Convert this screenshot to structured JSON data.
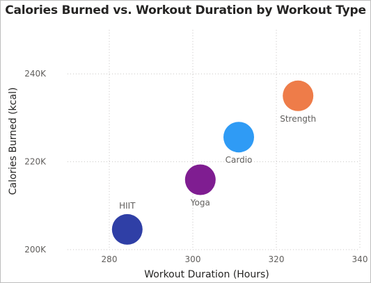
{
  "chart_data": {
    "type": "scatter",
    "title": "Calories Burned vs. Workout Duration by Workout Type",
    "xlabel": "Workout Duration (Hours)",
    "ylabel": "Calories Burned (kcal)",
    "xlim": [
      270,
      340
    ],
    "ylim": [
      200000,
      250000
    ],
    "xticks": [
      {
        "value": 280,
        "label": "280"
      },
      {
        "value": 300,
        "label": "300"
      },
      {
        "value": 320,
        "label": "320"
      },
      {
        "value": 340,
        "label": "340"
      }
    ],
    "yticks": [
      {
        "value": 200000,
        "label": "200K"
      },
      {
        "value": 220000,
        "label": "220K"
      },
      {
        "value": 240000,
        "label": "240K"
      }
    ],
    "grid": true,
    "legend": "none",
    "points": [
      {
        "name": "HIIT",
        "x": 284.3,
        "y": 204600,
        "color": "#2f3fa6",
        "label_position": "above"
      },
      {
        "name": "Yoga",
        "x": 301.8,
        "y": 215900,
        "color": "#7f1d91",
        "label_position": "below"
      },
      {
        "name": "Cardio",
        "x": 311.0,
        "y": 225600,
        "color": "#2f9bf5",
        "label_position": "below"
      },
      {
        "name": "Strength",
        "x": 325.2,
        "y": 235000,
        "color": "#ee7c49",
        "label_position": "below"
      }
    ]
  }
}
